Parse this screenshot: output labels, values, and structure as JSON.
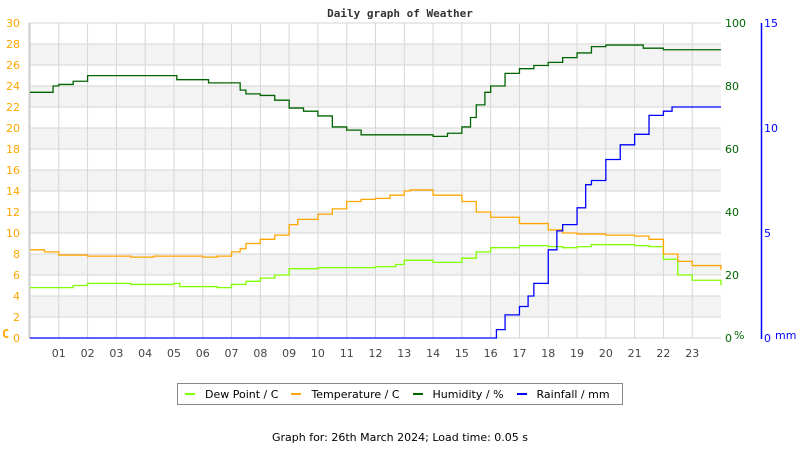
{
  "chart_data": {
    "type": "line",
    "title": "Daily graph of Weather",
    "x_ticks": [
      "01",
      "02",
      "03",
      "04",
      "05",
      "06",
      "07",
      "08",
      "09",
      "10",
      "11",
      "12",
      "13",
      "14",
      "15",
      "16",
      "17",
      "18",
      "19",
      "20",
      "21",
      "22",
      "23"
    ],
    "xlim": [
      0,
      24
    ],
    "grid": true,
    "axes": {
      "left": {
        "label": "C",
        "ylim": [
          0,
          30
        ],
        "ticks": [
          "0",
          "2",
          "4",
          "6",
          "8",
          "10",
          "12",
          "14",
          "16",
          "18",
          "20",
          "22",
          "24",
          "26",
          "28",
          "30"
        ],
        "color": "#ffa500"
      },
      "right_humidity": {
        "label": "%",
        "ylim": [
          0,
          100
        ],
        "ticks": [
          "0",
          "20",
          "40",
          "60",
          "80",
          "100"
        ],
        "color": "#006400"
      },
      "right_rain": {
        "label": "mm",
        "ylim": [
          0,
          15
        ],
        "ticks": [
          "0",
          "5",
          "10",
          "15"
        ],
        "color": "#0000ff"
      }
    },
    "series": [
      {
        "name": "Dew Point / C",
        "axis": "left",
        "color": "#80ff00",
        "x": [
          0,
          1,
          1.5,
          2,
          3.3,
          3.5,
          5,
          5.2,
          6.5,
          7,
          7.5,
          8,
          8.5,
          9,
          10,
          11,
          12,
          12.7,
          13,
          14,
          14.5,
          15,
          15.5,
          16,
          17,
          18,
          18.5,
          19,
          19.5,
          20,
          21,
          21.5,
          22,
          22.5,
          23,
          24
        ],
        "y": [
          4.8,
          4.8,
          5.0,
          5.2,
          5.2,
          5.1,
          5.2,
          4.9,
          4.8,
          5.1,
          5.4,
          5.7,
          6.0,
          6.6,
          6.7,
          6.7,
          6.8,
          7.0,
          7.4,
          7.2,
          7.2,
          7.6,
          8.2,
          8.6,
          8.8,
          8.7,
          8.6,
          8.7,
          8.9,
          8.9,
          8.8,
          8.7,
          7.5,
          6.0,
          5.5,
          5.0
        ]
      },
      {
        "name": "Temperature / C",
        "axis": "left",
        "color": "#ffa500",
        "x": [
          0,
          0.5,
          1,
          2,
          3.3,
          3.5,
          4,
          4.3,
          6,
          6.5,
          7,
          7.3,
          7.5,
          8,
          8.3,
          8.5,
          9,
          9.3,
          10,
          10.5,
          11,
          11.5,
          12,
          12.5,
          13,
          13.2,
          14,
          15,
          15.5,
          16,
          17,
          18,
          18.5,
          19,
          20,
          21,
          21.5,
          22,
          22.5,
          23,
          24
        ],
        "y": [
          8.4,
          8.2,
          7.9,
          7.8,
          7.8,
          7.7,
          7.7,
          7.8,
          7.7,
          7.8,
          8.2,
          8.5,
          9.0,
          9.4,
          9.4,
          9.8,
          10.8,
          11.3,
          11.8,
          12.3,
          13.0,
          13.2,
          13.3,
          13.6,
          14.0,
          14.1,
          13.6,
          13.0,
          12.0,
          11.5,
          10.9,
          10.3,
          10.0,
          9.9,
          9.8,
          9.7,
          9.4,
          8.0,
          7.3,
          6.9,
          6.5
        ]
      },
      {
        "name": "Humidity / %",
        "axis": "right_humidity",
        "color": "#006400",
        "x": [
          0,
          0.8,
          1,
          1.5,
          2,
          5,
          5.1,
          6,
          6.2,
          7,
          7.3,
          7.5,
          8,
          8.5,
          9,
          9.5,
          10,
          10.5,
          11,
          11.5,
          14,
          14.5,
          15,
          15.3,
          15.5,
          15.8,
          16,
          16.5,
          17,
          17.5,
          18,
          18.5,
          19,
          19.5,
          20,
          21,
          21.3,
          22,
          24
        ],
        "y": [
          78,
          80,
          80.5,
          81.5,
          83.3,
          83.3,
          82,
          82,
          81,
          81,
          78.7,
          77.5,
          77,
          75.5,
          73,
          72,
          70.5,
          67,
          66,
          64.5,
          64,
          65,
          67,
          70,
          74,
          78,
          80,
          84,
          85.5,
          86.5,
          87.5,
          89,
          90.5,
          92.5,
          93,
          93,
          92,
          91.5,
          91.5
        ]
      },
      {
        "name": "Rainfall / mm",
        "axis": "right_rain",
        "color": "#0000ff",
        "x": [
          0,
          15.9,
          16.2,
          16.5,
          17,
          17.3,
          17.5,
          18,
          18.3,
          18.5,
          19,
          19.3,
          19.5,
          20,
          20.5,
          21,
          21.5,
          22,
          22.3,
          24
        ],
        "y": [
          0,
          0,
          0.4,
          1.1,
          1.5,
          2.0,
          2.6,
          4.2,
          5.1,
          5.4,
          6.2,
          7.3,
          7.5,
          8.5,
          9.2,
          9.7,
          10.6,
          10.8,
          11.0,
          11.0
        ]
      }
    ]
  },
  "footer": "Graph for: 26th March 2024; Load time: 0.05 s"
}
